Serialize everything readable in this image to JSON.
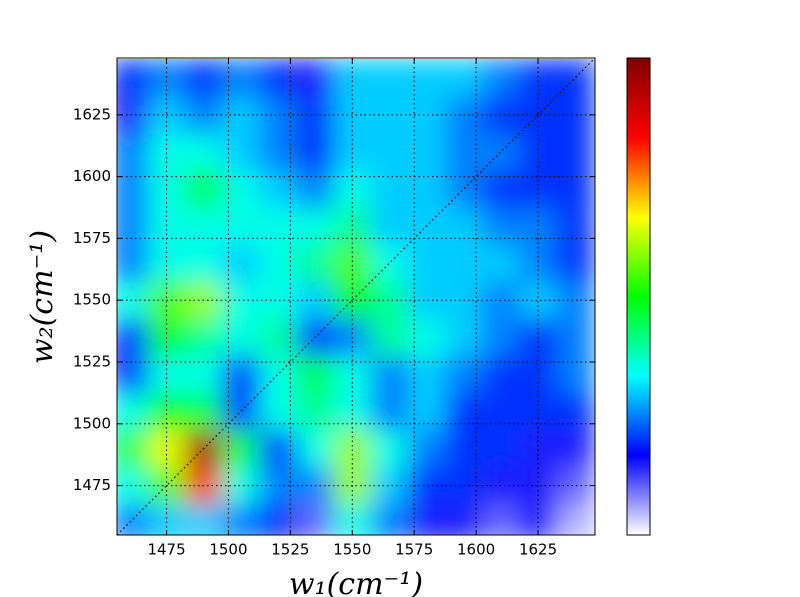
{
  "chart_data": {
    "type": "heatmap",
    "xlabel": "w₁(cm⁻¹)",
    "ylabel": "w₂(cm⁻¹)",
    "x": [
      1460,
      1475,
      1490,
      1505,
      1520,
      1535,
      1550,
      1565,
      1580,
      1595,
      1610,
      1625,
      1640
    ],
    "y": [
      1460,
      1475,
      1490,
      1505,
      1520,
      1535,
      1550,
      1565,
      1580,
      1595,
      1610,
      1625,
      1640
    ],
    "z": [
      [
        0.25,
        0.3,
        0.3,
        0.25,
        0.2,
        0.1,
        0.35,
        0.25,
        0.15,
        0.15,
        0.1,
        0.15,
        0.05
      ],
      [
        0.35,
        0.55,
        0.8,
        0.35,
        0.25,
        0.25,
        0.6,
        0.3,
        0.2,
        0.2,
        0.15,
        0.15,
        0.1
      ],
      [
        0.45,
        0.65,
        0.95,
        0.45,
        0.2,
        0.35,
        0.6,
        0.35,
        0.25,
        0.2,
        0.2,
        0.15,
        0.15
      ],
      [
        0.35,
        0.5,
        0.45,
        0.2,
        0.35,
        0.4,
        0.35,
        0.25,
        0.3,
        0.2,
        0.2,
        0.2,
        0.2
      ],
      [
        0.2,
        0.35,
        0.35,
        0.2,
        0.35,
        0.45,
        0.35,
        0.25,
        0.3,
        0.25,
        0.2,
        0.2,
        0.25
      ],
      [
        0.2,
        0.5,
        0.4,
        0.35,
        0.4,
        0.2,
        0.25,
        0.4,
        0.35,
        0.3,
        0.25,
        0.2,
        0.25
      ],
      [
        0.35,
        0.55,
        0.6,
        0.35,
        0.35,
        0.3,
        0.5,
        0.4,
        0.3,
        0.3,
        0.25,
        0.3,
        0.25
      ],
      [
        0.25,
        0.35,
        0.35,
        0.3,
        0.35,
        0.4,
        0.55,
        0.35,
        0.3,
        0.3,
        0.3,
        0.25,
        0.2
      ],
      [
        0.25,
        0.35,
        0.35,
        0.35,
        0.35,
        0.35,
        0.4,
        0.3,
        0.3,
        0.3,
        0.25,
        0.25,
        0.2
      ],
      [
        0.25,
        0.35,
        0.45,
        0.35,
        0.3,
        0.25,
        0.35,
        0.3,
        0.3,
        0.25,
        0.2,
        0.2,
        0.2
      ],
      [
        0.25,
        0.35,
        0.35,
        0.3,
        0.25,
        0.2,
        0.3,
        0.3,
        0.3,
        0.25,
        0.25,
        0.2,
        0.2
      ],
      [
        0.15,
        0.3,
        0.25,
        0.3,
        0.25,
        0.2,
        0.3,
        0.3,
        0.3,
        0.25,
        0.2,
        0.2,
        0.2
      ],
      [
        0.2,
        0.25,
        0.2,
        0.25,
        0.2,
        0.15,
        0.3,
        0.3,
        0.3,
        0.3,
        0.25,
        0.2,
        0.2
      ]
    ],
    "zlim": [
      0,
      1
    ],
    "colormap": [
      "#ffffff",
      "#0000ff",
      "#00ffff",
      "#00ff00",
      "#ffff00",
      "#ff0000",
      "#800000"
    ],
    "xlim": [
      1455,
      1648
    ],
    "ylim": [
      1455,
      1648
    ],
    "xticks": [
      1475,
      1500,
      1525,
      1550,
      1575,
      1600,
      1625
    ],
    "yticks": [
      1475,
      1500,
      1525,
      1550,
      1575,
      1600,
      1625
    ],
    "grid": true,
    "diagonal": true
  }
}
